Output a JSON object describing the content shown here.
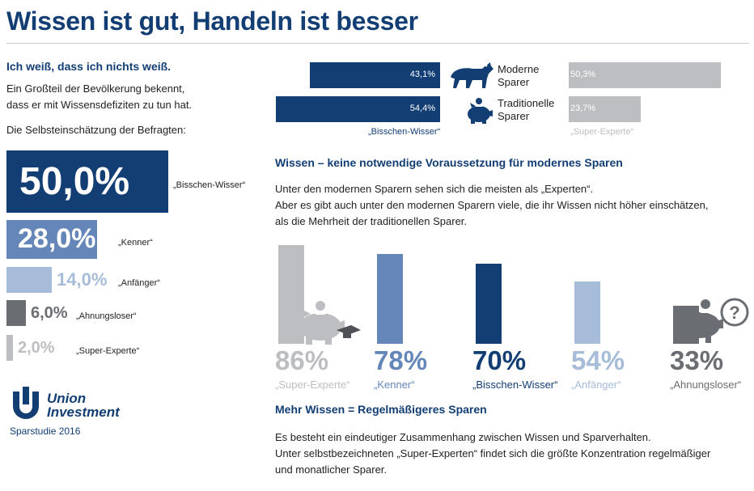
{
  "header": {
    "title": "Wissen ist gut, Handeln ist besser"
  },
  "intro": {
    "heading": "Ich weiß, dass ich nichts weiß.",
    "text_line1": "Ein Großteil der Bevölkerung bekennt,",
    "text_line2": "dass er mit Wissensdefiziten zu tun hat.",
    "question": "Die Selbsteinschätzung der Befragten:"
  },
  "section_wissen": {
    "heading": "Wissen – keine notwendige Voraussetzung für modernes Sparen",
    "line1": "Unter den modernen Sparern sehen sich die meisten als „Experten“.",
    "line2": "Aber es gibt auch unter den modernen Sparern viele, die ihr Wissen nicht höher einschätzen,",
    "line3": "als die Mehrheit der traditionellen Sparer."
  },
  "section_mehr": {
    "heading": "Mehr Wissen = Regelmäßigeres Sparen",
    "line1": "Es besteht ein eindeutiger Zusammenhang zwischen Wissen und Sparverhalten.",
    "line2": "Unter selbstbezeichneten „Super-Experten“ findet sich die größte Konzentration regelmäßiger",
    "line3": "und monatlicher Sparer."
  },
  "brand": {
    "name_line1": "Union",
    "name_line2": "Investment",
    "study": "Sparstudie 2016",
    "color": "#123e74"
  },
  "colors": {
    "dark_blue": "#123e74",
    "mid_blue": "#6586b8",
    "light_blue": "#a6bcd8",
    "dark_gray": "#6a6d72",
    "light_gray": "#bcbec1"
  },
  "chart_data": [
    {
      "type": "bar",
      "orientation": "horizontal",
      "categories": [
        "„Bisschen-Wisser“",
        "„Kenner“",
        "„Anfänger“",
        "„Ahnungsloser“",
        "„Super-Experte“"
      ],
      "values": [
        50.0,
        28.0,
        14.0,
        6.0,
        2.0
      ],
      "value_labels": [
        "50,0%",
        "28,0%",
        "14,0%",
        "6,0%",
        "2,0%"
      ],
      "colors": [
        "#123e74",
        "#6586b8",
        "#a6bcd8",
        "#6a6d72",
        "#bcbec1"
      ],
      "value_colors": [
        "#ffffff",
        "#ffffff",
        "#a6bcd8",
        "#6a6d72",
        "#bcbec1"
      ],
      "unit": "%"
    },
    {
      "type": "bar",
      "orientation": "horizontal",
      "series": [
        {
          "name": "„Bisschen-Wisser“",
          "color": "#123e74",
          "values": [
            43.1,
            54.4
          ],
          "value_labels": [
            "43,1%",
            "54,4%"
          ]
        },
        {
          "name": "„Super-Experte“",
          "color": "#bcbec1",
          "values": [
            50.3,
            23.7
          ],
          "value_labels": [
            "50,3%",
            "23,7%"
          ]
        }
      ],
      "groups": [
        {
          "line1": "Moderne",
          "line2": "Sparer",
          "icon": "bull-icon"
        },
        {
          "line1": "Traditionelle",
          "line2": "Sparer",
          "icon": "piggy-bank-icon"
        }
      ],
      "unit": "%"
    },
    {
      "type": "bar",
      "orientation": "vertical",
      "categories": [
        "„Super-Experte“",
        "„Kenner“",
        "„Bisschen-Wisser“",
        "„Anfänger“",
        "„Ahnungsloser“"
      ],
      "values": [
        86,
        78,
        70,
        54,
        33
      ],
      "value_labels": [
        "86%",
        "78%",
        "70%",
        "54%",
        "33%"
      ],
      "colors": [
        "#bcbec1",
        "#6586b8",
        "#123e74",
        "#a6bcd8",
        "#6a6d72"
      ],
      "icons": [
        "piggy-graduate-icon",
        "",
        "",
        "",
        "piggy-question-icon"
      ],
      "unit": "%"
    }
  ]
}
